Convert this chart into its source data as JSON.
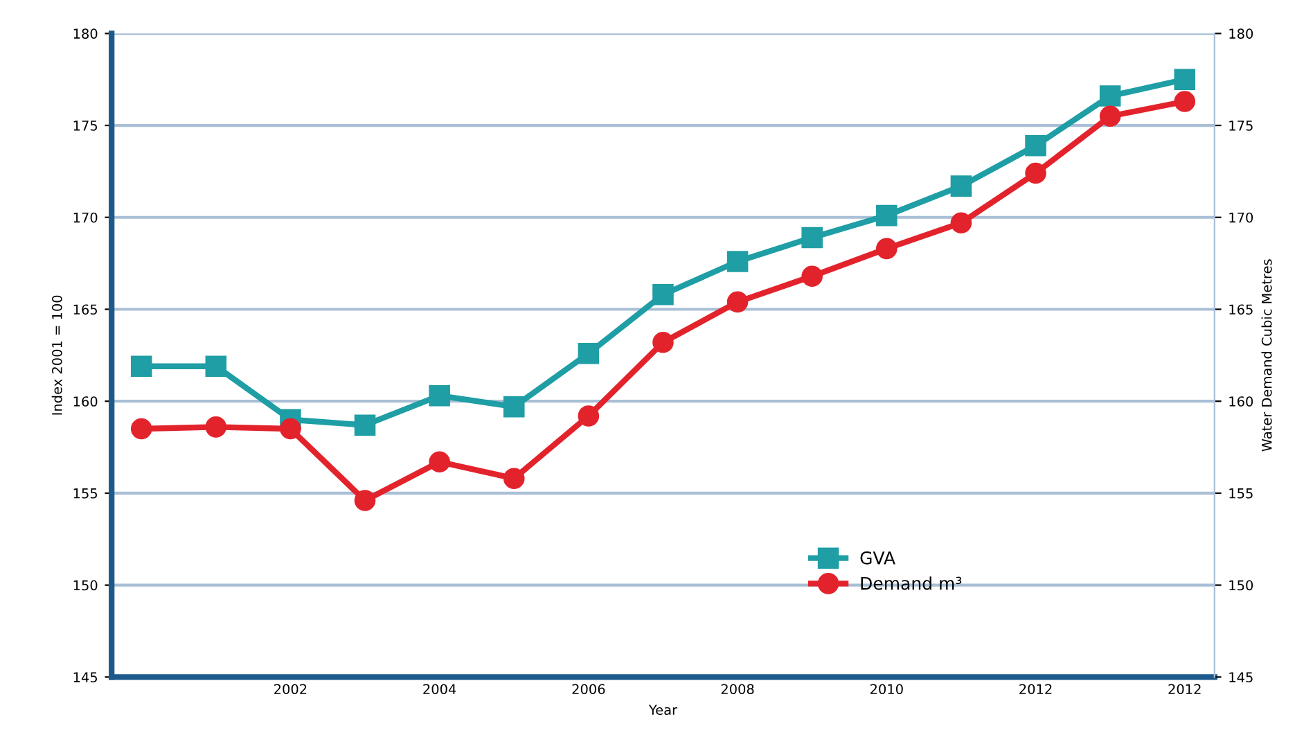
{
  "chart_data": {
    "type": "line",
    "xlabel": "Year",
    "ylabel": "Index 2001 = 100",
    "y2label": "Water Demand Cubic Metres",
    "categories": [
      null,
      null,
      "2002",
      null,
      "2004",
      null,
      "2006",
      null,
      "2008",
      null,
      "2010",
      null,
      "2012",
      null,
      "2012"
    ],
    "series": [
      {
        "name": "GVA",
        "color": "#1f9ea5",
        "marker": "square",
        "values": [
          161.9,
          161.9,
          159.0,
          158.7,
          160.3,
          159.7,
          162.6,
          165.8,
          167.6,
          168.9,
          170.1,
          171.7,
          173.9,
          176.6,
          177.5
        ]
      },
      {
        "name": "Demand m³",
        "color": "#e3232c",
        "marker": "circle",
        "values": [
          158.5,
          158.6,
          158.5,
          154.6,
          156.7,
          155.8,
          159.2,
          163.2,
          165.4,
          166.8,
          168.3,
          169.7,
          172.4,
          175.5,
          176.3
        ]
      }
    ],
    "ylim": [
      145,
      180
    ],
    "yticks": [
      145,
      150,
      155,
      160,
      165,
      170,
      175,
      180
    ],
    "y2lim": [
      145,
      180
    ],
    "y2ticks": [
      145,
      150,
      155,
      160,
      165,
      170,
      175,
      180
    ],
    "grid": "y",
    "legend": "bottom right"
  }
}
